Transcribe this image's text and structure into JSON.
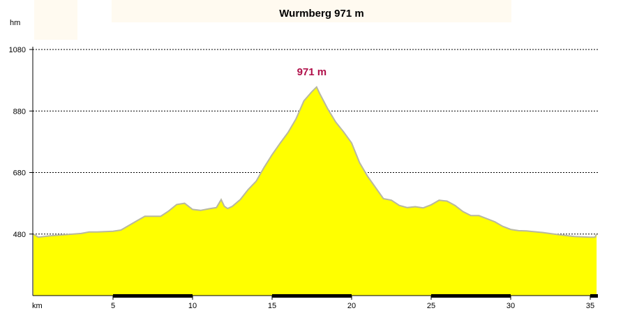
{
  "chart_data": {
    "type": "area",
    "title": "Wurmberg 971 m",
    "ylabel": "hm",
    "xlabel": "km",
    "annotation": "971 m",
    "xlim": [
      0,
      35.4
    ],
    "ylim": [
      280,
      1080
    ],
    "yticks": [
      480,
      680,
      880,
      1080
    ],
    "ytick_labels": [
      "480",
      "680",
      "880",
      "1080"
    ],
    "xticks": [
      5,
      10,
      15,
      20,
      25,
      30,
      35
    ],
    "xtick_labels": [
      "5",
      "10",
      "15",
      "20",
      "25",
      "30",
      "35"
    ],
    "grid": "horizontal dashed",
    "colors": {
      "fill": "#ffff00",
      "line": "#b8b8a0",
      "annotation": "#b0104a",
      "header_bg": "#fffaf0"
    },
    "series": [
      {
        "x": [
          0,
          0.3,
          1.0,
          2.0,
          3.0,
          3.5,
          4.0,
          5.0,
          5.5,
          6.0,
          6.5,
          7.0,
          8.0,
          8.5,
          9.0,
          9.5,
          10.0,
          10.5,
          11.0,
          11.5,
          11.8,
          12.0,
          12.2,
          12.5,
          13.0,
          13.5,
          14.0,
          14.5,
          15.0,
          15.5,
          16.0,
          16.5,
          17.0,
          17.5,
          17.8,
          18.0,
          18.5,
          19.0,
          19.5,
          20.0,
          20.5,
          21.0,
          22.0,
          22.5,
          23.0,
          23.5,
          24.0,
          24.5,
          25.0,
          25.5,
          26.0,
          26.5,
          27.0,
          27.5,
          28.0,
          29.0,
          29.5,
          30.0,
          30.5,
          31.0,
          32.0,
          33.0,
          34.0,
          35.0,
          35.3,
          35.4
        ],
        "y": [
          480,
          470,
          474,
          478,
          482,
          487,
          487,
          489,
          493,
          508,
          523,
          538,
          538,
          555,
          576,
          580,
          560,
          557,
          562,
          566,
          592,
          570,
          563,
          570,
          592,
          625,
          652,
          697,
          738,
          775,
          810,
          854,
          913,
          943,
          958,
          936,
          887,
          844,
          812,
          776,
          712,
          668,
          595,
          590,
          573,
          566,
          569,
          565,
          575,
          590,
          587,
          573,
          553,
          540,
          540,
          520,
          505,
          495,
          491,
          490,
          485,
          478,
          472,
          470,
          470,
          480
        ]
      }
    ]
  }
}
